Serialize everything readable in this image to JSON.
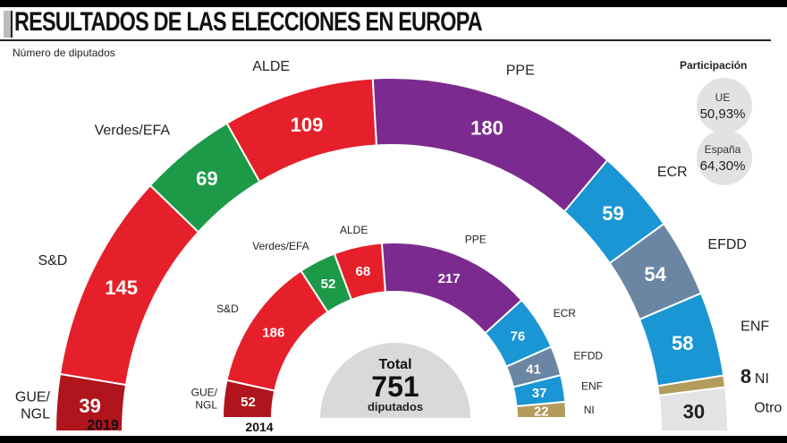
{
  "title": "RESULTADOS DE LAS ELECCIONES EN EUROPA",
  "subtitle": "Número de diputados",
  "participation": {
    "title": "Participación",
    "items": [
      {
        "label": "UE",
        "value": "50,93%"
      },
      {
        "label": "España",
        "value": "64,30%"
      }
    ]
  },
  "total": {
    "label": "Total",
    "value": "751",
    "unit": "diputados"
  },
  "chart_data": [
    {
      "type": "pie",
      "title": "2019",
      "categories": [
        "GUE/NGL",
        "S&D",
        "Verdes/EFA",
        "ALDE",
        "PPE",
        "ECR",
        "EFDD",
        "ENF",
        "NI",
        "Otro"
      ],
      "values": [
        39,
        145,
        69,
        109,
        180,
        59,
        54,
        58,
        8,
        30
      ],
      "colors": [
        "#b0141c",
        "#e5202a",
        "#1c9a48",
        "#e5202a",
        "#7b2b8f",
        "#1996d3",
        "#6b86a2",
        "#1996d3",
        "#b39b5c",
        "#e3e3e3"
      ]
    },
    {
      "type": "pie",
      "title": "2014",
      "categories": [
        "GUE/NGL",
        "S&D",
        "Verdes/EFA",
        "ALDE",
        "PPE",
        "ECR",
        "EFDD",
        "ENF",
        "NI"
      ],
      "values": [
        52,
        186,
        52,
        68,
        217,
        76,
        41,
        37,
        22
      ],
      "colors": [
        "#b0141c",
        "#e5202a",
        "#1c9a48",
        "#e5202a",
        "#7b2b8f",
        "#1996d3",
        "#6b86a2",
        "#1996d3",
        "#b39b5c"
      ]
    }
  ]
}
